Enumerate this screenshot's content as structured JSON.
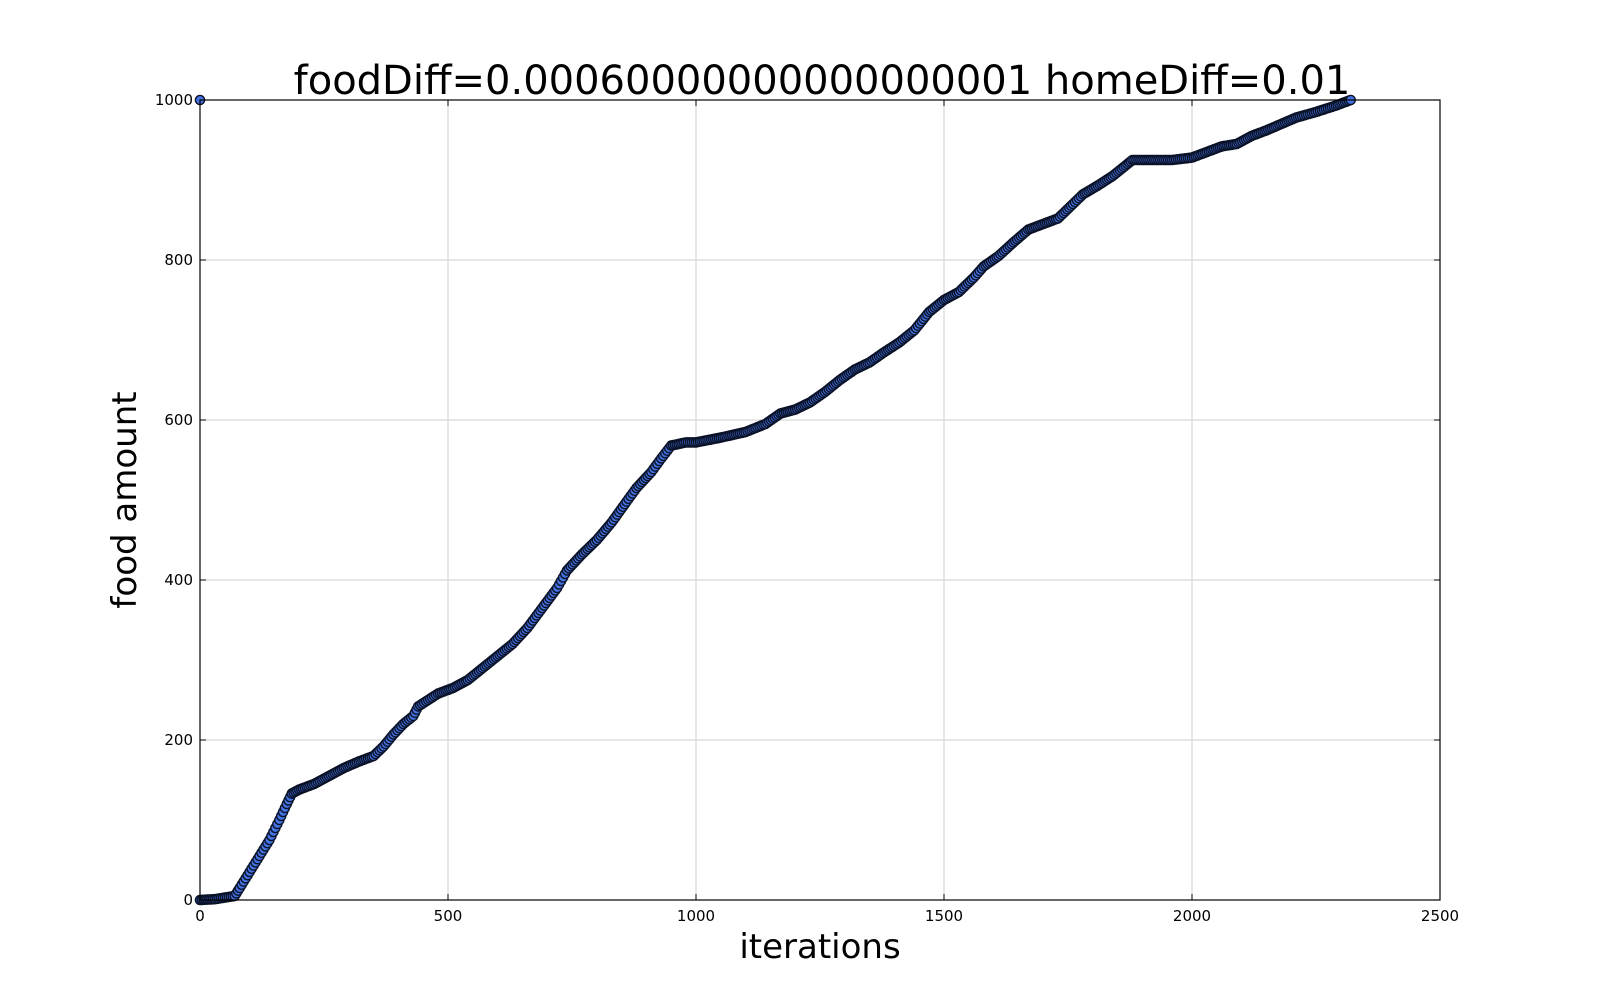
{
  "chart_data": {
    "type": "scatter",
    "title": "foodDiff=0.00060000000000000001 homeDiff=0.01",
    "xlabel": "iterations",
    "ylabel": "food amount",
    "xlim": [
      0,
      2500
    ],
    "ylim": [
      0,
      1000
    ],
    "x_ticks": [
      "0",
      "500",
      "1000",
      "1500",
      "2000",
      "2500"
    ],
    "y_ticks": [
      "0",
      "200",
      "400",
      "600",
      "800",
      "1000"
    ],
    "grid": true,
    "marker_color": "#4472e0",
    "marker_edge_color": "#0a1228",
    "series": [
      {
        "points": [
          [
            0,
            1000
          ],
          [
            0,
            0
          ],
          [
            30,
            1
          ],
          [
            50,
            3
          ],
          [
            70,
            5
          ],
          [
            80,
            15
          ],
          [
            100,
            35
          ],
          [
            120,
            55
          ],
          [
            140,
            75
          ],
          [
            160,
            100
          ],
          [
            175,
            120
          ],
          [
            185,
            133
          ],
          [
            200,
            138
          ],
          [
            230,
            145
          ],
          [
            260,
            155
          ],
          [
            290,
            165
          ],
          [
            320,
            173
          ],
          [
            350,
            180
          ],
          [
            370,
            192
          ],
          [
            390,
            207
          ],
          [
            410,
            220
          ],
          [
            430,
            230
          ],
          [
            440,
            242
          ],
          [
            460,
            250
          ],
          [
            480,
            258
          ],
          [
            510,
            265
          ],
          [
            540,
            275
          ],
          [
            570,
            290
          ],
          [
            600,
            305
          ],
          [
            630,
            320
          ],
          [
            660,
            340
          ],
          [
            690,
            365
          ],
          [
            720,
            390
          ],
          [
            740,
            412
          ],
          [
            770,
            432
          ],
          [
            800,
            450
          ],
          [
            830,
            472
          ],
          [
            860,
            498
          ],
          [
            880,
            515
          ],
          [
            910,
            535
          ],
          [
            930,
            552
          ],
          [
            950,
            568
          ],
          [
            980,
            572
          ],
          [
            1000,
            572
          ],
          [
            1050,
            578
          ],
          [
            1100,
            585
          ],
          [
            1140,
            595
          ],
          [
            1170,
            608
          ],
          [
            1200,
            613
          ],
          [
            1230,
            622
          ],
          [
            1260,
            635
          ],
          [
            1290,
            650
          ],
          [
            1320,
            663
          ],
          [
            1350,
            672
          ],
          [
            1380,
            685
          ],
          [
            1410,
            697
          ],
          [
            1440,
            712
          ],
          [
            1470,
            735
          ],
          [
            1500,
            750
          ],
          [
            1530,
            760
          ],
          [
            1560,
            778
          ],
          [
            1580,
            792
          ],
          [
            1610,
            805
          ],
          [
            1640,
            822
          ],
          [
            1670,
            838
          ],
          [
            1700,
            845
          ],
          [
            1730,
            852
          ],
          [
            1760,
            870
          ],
          [
            1780,
            882
          ],
          [
            1810,
            893
          ],
          [
            1840,
            905
          ],
          [
            1870,
            920
          ],
          [
            1880,
            925
          ],
          [
            1920,
            925
          ],
          [
            1960,
            925
          ],
          [
            2000,
            928
          ],
          [
            2030,
            935
          ],
          [
            2060,
            942
          ],
          [
            2090,
            945
          ],
          [
            2120,
            955
          ],
          [
            2150,
            962
          ],
          [
            2180,
            970
          ],
          [
            2210,
            978
          ],
          [
            2250,
            985
          ],
          [
            2290,
            993
          ],
          [
            2320,
            1000
          ]
        ]
      }
    ]
  }
}
